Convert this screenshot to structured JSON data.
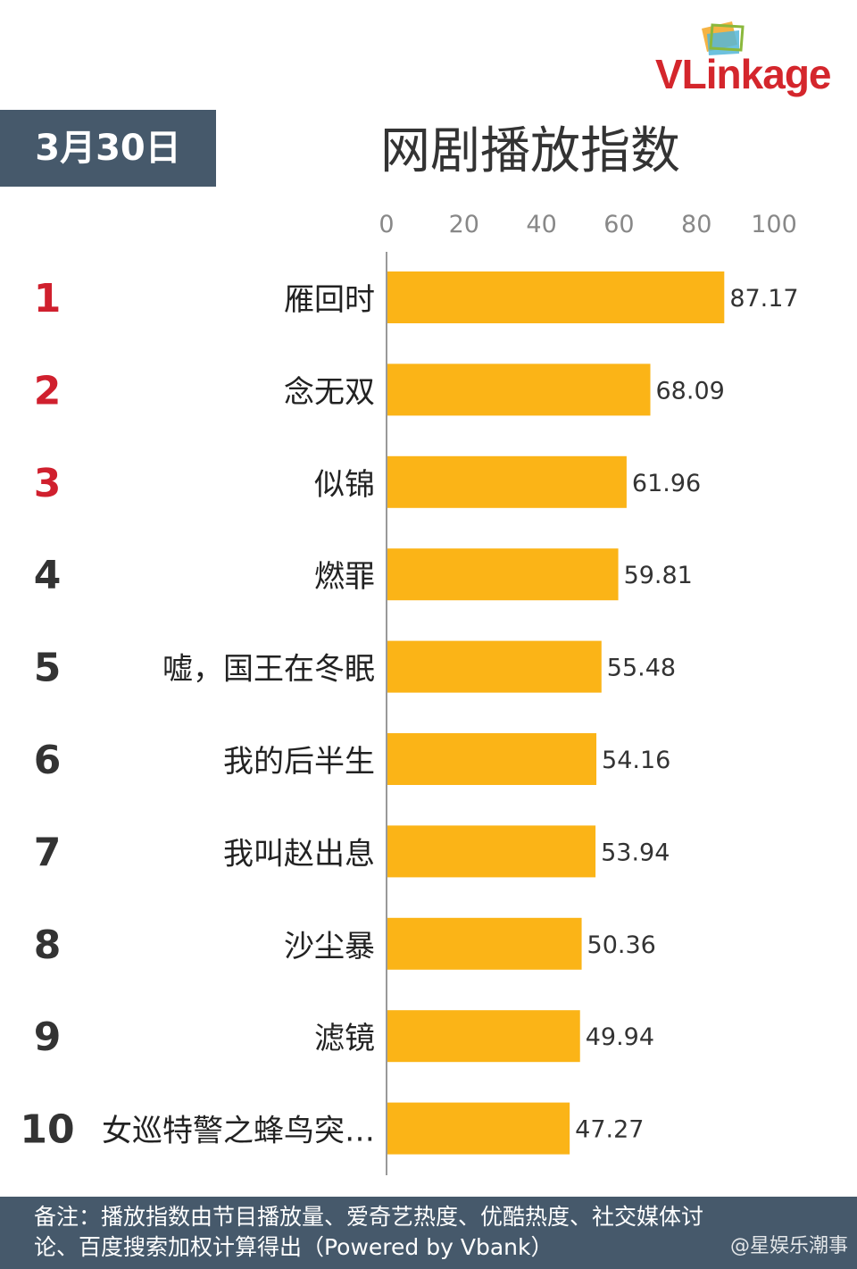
{
  "brand": {
    "logo_text": "VLinkage"
  },
  "date_label": "3月30日",
  "chart_data": {
    "type": "bar",
    "orientation": "horizontal",
    "title": "网剧播放指数",
    "xlim": [
      0,
      100
    ],
    "ticks": [
      0,
      20,
      40,
      60,
      80,
      100
    ],
    "ranks": [
      "1",
      "2",
      "3",
      "4",
      "5",
      "6",
      "7",
      "8",
      "9",
      "10"
    ],
    "categories": [
      "雁回时",
      "念无双",
      "似锦",
      "燃罪",
      "嘘，国王在冬眠",
      "我的后半生",
      "我叫赵出息",
      "沙尘暴",
      "滤镜",
      "女巡特警之蜂鸟突…"
    ],
    "values": [
      87.17,
      68.09,
      61.96,
      59.81,
      55.48,
      54.16,
      53.94,
      50.36,
      49.94,
      47.27
    ],
    "grid": false,
    "colors": {
      "bar": "#fbb417",
      "top_rank": "#d0202e",
      "rank": "#333333",
      "axis": "#999999",
      "label": "#222222",
      "value": "#333333",
      "tick": "#888888"
    }
  },
  "footer": {
    "line1": "备注：播放指数由节目播放量、爱奇艺热度、优酷热度、社交媒体讨",
    "line2": "论、百度搜索加权计算得出（Powered by Vbank）",
    "watermark": "@星娱乐潮事"
  },
  "theme": {
    "badge_bg": "#46596b",
    "brand_red": "#d4262c"
  }
}
